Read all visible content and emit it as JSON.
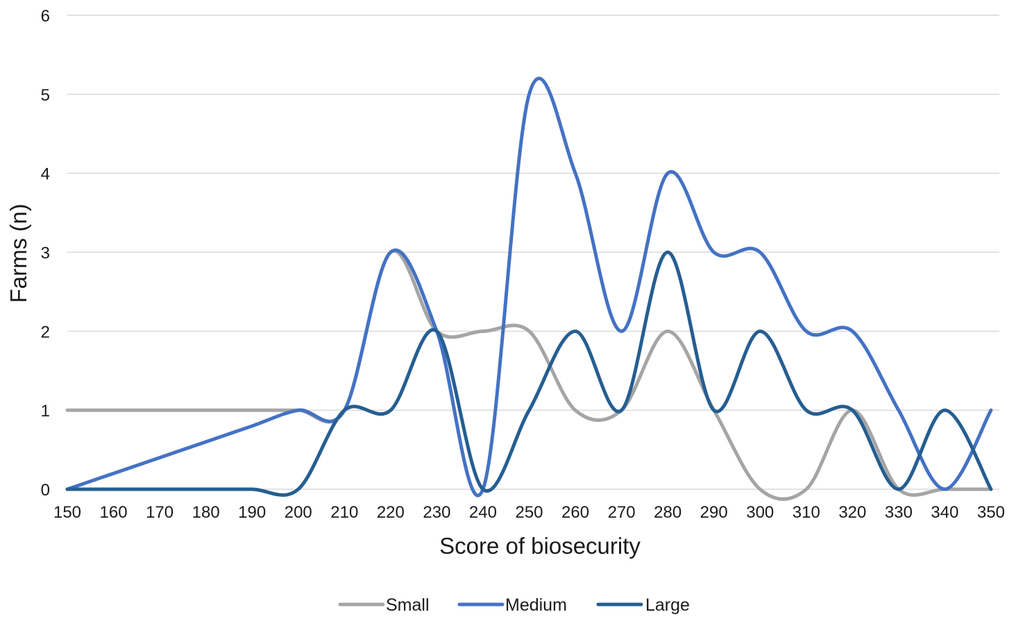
{
  "chart_data": {
    "type": "line",
    "smooth": true,
    "xlabel": "Score of biosecurity",
    "ylabel": "Farms (n)",
    "ylim": [
      0,
      6
    ],
    "yticks": [
      "0",
      "1",
      "2",
      "3",
      "4",
      "5",
      "6"
    ],
    "x": [
      150,
      160,
      170,
      180,
      190,
      200,
      210,
      220,
      230,
      240,
      250,
      260,
      270,
      280,
      290,
      300,
      310,
      320,
      330,
      340,
      350
    ],
    "grid": "horizontal",
    "legend_position": "bottom",
    "series": [
      {
        "name": "Small",
        "color": "#a5a5a5",
        "values": [
          1,
          1,
          1,
          1,
          1,
          1,
          1,
          3,
          2,
          2,
          2,
          1,
          1,
          2,
          1,
          0,
          0,
          1,
          0,
          0,
          0
        ]
      },
      {
        "name": "Medium",
        "color": "#4472c4",
        "values": [
          0,
          0.2,
          0.4,
          0.6,
          0.8,
          1,
          1,
          3,
          2,
          0,
          5,
          4,
          2,
          4,
          3,
          3,
          2,
          2,
          1,
          0,
          1
        ]
      },
      {
        "name": "Large",
        "color": "#255e91",
        "values": [
          0,
          0,
          0,
          0,
          0,
          0,
          1,
          1,
          2,
          0,
          1,
          2,
          1,
          3,
          1,
          2,
          1,
          1,
          0,
          1,
          0
        ]
      }
    ]
  }
}
